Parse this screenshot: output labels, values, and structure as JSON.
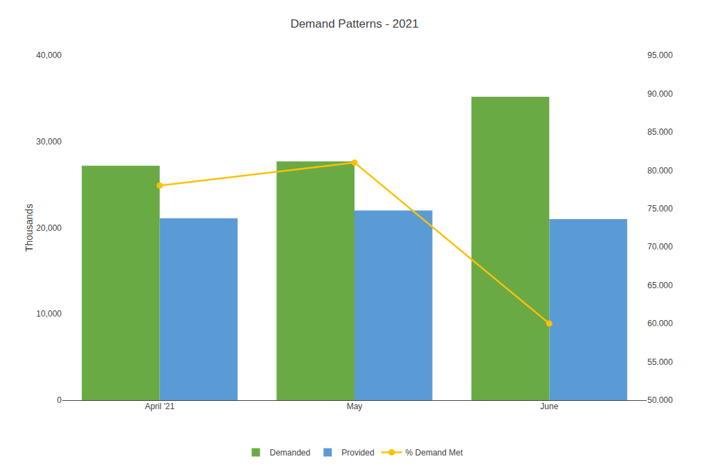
{
  "chart_data": {
    "type": "bar",
    "title": "Demand Patterns - 2021",
    "categories": [
      "April '21",
      "May",
      "June"
    ],
    "series": [
      {
        "name": "Demanded",
        "color": "#6aaa45",
        "values": [
          27200,
          27700,
          35200
        ]
      },
      {
        "name": "Provided",
        "color": "#5b9bd5",
        "values": [
          21100,
          22000,
          21000
        ]
      },
      {
        "name": "% Demand Met",
        "color": "#ffc000",
        "values": [
          78.0,
          81.0,
          60.0
        ],
        "type": "line",
        "axis": "y2",
        "marker": "circle"
      }
    ],
    "ylabel": "Thousands",
    "ylim": [
      0,
      40000
    ],
    "yticks": [
      0,
      {
        "value": 10000,
        "label": "10,000"
      },
      {
        "value": 20000,
        "label": "20,000"
      },
      {
        "value": 30000,
        "label": "30,000"
      },
      {
        "value": 40000,
        "label": "40,000"
      }
    ],
    "y2lim": [
      50.0,
      95.0
    ],
    "y2ticks": [
      {
        "value": 50.0,
        "label": "50.000"
      },
      {
        "value": 55.0,
        "label": "55.000"
      },
      {
        "value": 60.0,
        "label": "60.000"
      },
      {
        "value": 65.0,
        "label": "65.000"
      },
      {
        "value": 70.0,
        "label": "70.000"
      },
      {
        "value": 75.0,
        "label": "75.000"
      },
      {
        "value": 80.0,
        "label": "80.000"
      },
      {
        "value": 85.0,
        "label": "85.000"
      },
      {
        "value": 90.0,
        "label": "90.000"
      },
      {
        "value": 95.0,
        "label": "95.000"
      }
    ],
    "grid": false,
    "legend": "bottom"
  }
}
